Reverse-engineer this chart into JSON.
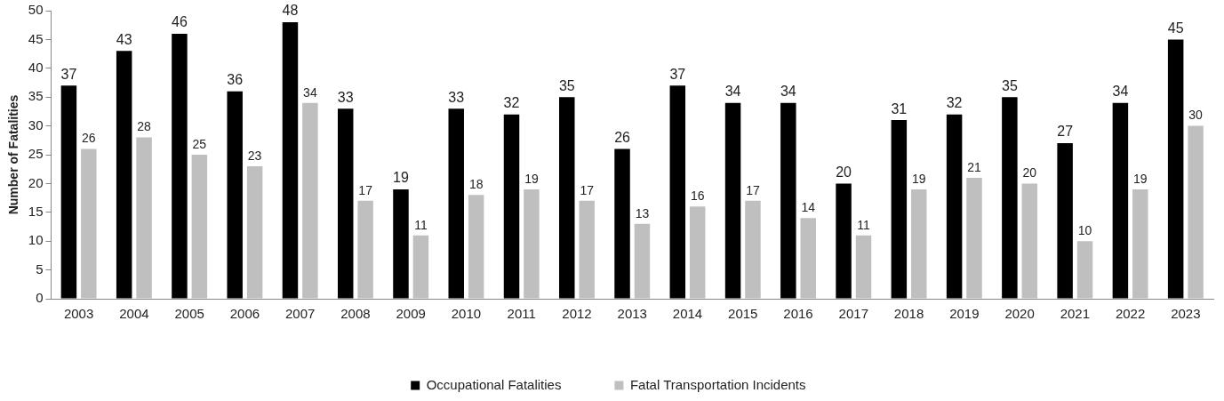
{
  "chart_data": {
    "type": "bar",
    "ylabel": "Number of Fatalities",
    "categories": [
      "2003",
      "2004",
      "2005",
      "2006",
      "2007",
      "2008",
      "2009",
      "2010",
      "2011",
      "2012",
      "2013",
      "2014",
      "2015",
      "2016",
      "2017",
      "2018",
      "2019",
      "2020",
      "2021",
      "2022",
      "2023"
    ],
    "series": [
      {
        "name": "Occupational Fatalities",
        "color": "#000000",
        "values": [
          37,
          43,
          46,
          36,
          48,
          33,
          19,
          33,
          32,
          35,
          26,
          37,
          34,
          34,
          20,
          31,
          32,
          35,
          27,
          34,
          45
        ]
      },
      {
        "name": "Fatal Transportation Incidents",
        "color": "#bfbfbf",
        "values": [
          26,
          28,
          25,
          23,
          34,
          17,
          11,
          18,
          19,
          17,
          13,
          16,
          17,
          14,
          11,
          19,
          21,
          20,
          10,
          19,
          30
        ]
      }
    ],
    "ylim": [
      0,
      50
    ],
    "yticks": [
      0,
      5,
      10,
      15,
      20,
      25,
      30,
      35,
      40,
      45,
      50
    ],
    "grid": false,
    "legend": "bottom",
    "data_labels": true
  }
}
